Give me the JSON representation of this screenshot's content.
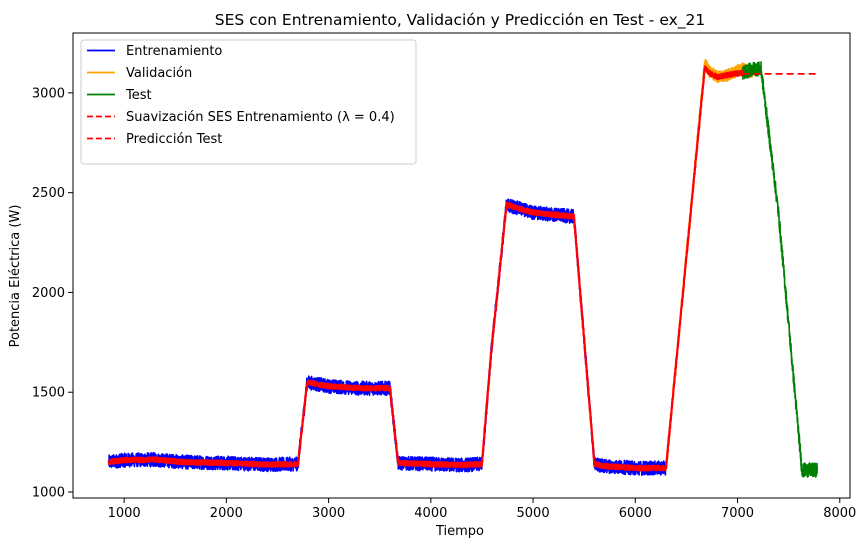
{
  "chart_data": {
    "type": "line",
    "title": "SES con Entrenamiento, Validación y Predicción en Test - ex_21",
    "xlabel": "Tiempo",
    "ylabel": "Potencia Eléctrica (W)",
    "xlim": [
      500,
      8100
    ],
    "ylim": [
      970,
      3300
    ],
    "xticks": [
      1000,
      2000,
      3000,
      4000,
      5000,
      6000,
      7000,
      8000
    ],
    "yticks": [
      1000,
      1500,
      2000,
      2500,
      3000
    ],
    "grid": false,
    "legend_position": "top-left",
    "series": [
      {
        "name": "Entrenamiento",
        "color": "#0000ff",
        "style": "solid",
        "noise": 35,
        "x": [
          850,
          1000,
          1300,
          1600,
          2000,
          2400,
          2700,
          2790,
          3000,
          3300,
          3600,
          3680,
          4000,
          4300,
          4500,
          4590,
          4740,
          5000,
          5300,
          5400,
          5600,
          5700,
          6000,
          6300
        ],
        "y": [
          1150,
          1160,
          1162,
          1150,
          1145,
          1138,
          1140,
          1550,
          1530,
          1520,
          1520,
          1145,
          1140,
          1135,
          1140,
          1700,
          2440,
          2400,
          2385,
          2380,
          1140,
          1130,
          1120,
          1120
        ]
      },
      {
        "name": "Validación",
        "color": "#ffa500",
        "style": "solid",
        "noise": 30,
        "x": [
          6300,
          6680,
          6720,
          6800,
          6900,
          7050,
          7150
        ],
        "y": [
          1120,
          3150,
          3110,
          3080,
          3090,
          3120,
          3100
        ]
      },
      {
        "name": "Test",
        "color": "#008000",
        "style": "solid",
        "noise": 35,
        "x": [
          7050,
          7150,
          7230,
          7400,
          7630,
          7700,
          7780
        ],
        "y": [
          3100,
          3120,
          3120,
          2400,
          1110,
          1110,
          1110
        ]
      },
      {
        "name": "Suavización SES Entrenamiento ($\\lambda = 0.4$)",
        "legend_text": "Suavización SES Entrenamiento (λ = 0.4)",
        "color": "#ff0000",
        "style": "dashed",
        "noise": 12,
        "x": [
          850,
          1000,
          1300,
          1600,
          2000,
          2400,
          2700,
          2790,
          3000,
          3300,
          3600,
          3680,
          4000,
          4300,
          4500,
          4590,
          4740,
          5000,
          5300,
          5400,
          5600,
          5700,
          6000,
          6300,
          6680,
          6720,
          6800,
          6900,
          7050
        ],
        "y": [
          1150,
          1160,
          1162,
          1150,
          1145,
          1138,
          1140,
          1550,
          1530,
          1520,
          1520,
          1145,
          1140,
          1135,
          1140,
          1700,
          2440,
          2400,
          2385,
          2380,
          1140,
          1130,
          1120,
          1120,
          3130,
          3100,
          3080,
          3090,
          3100
        ]
      },
      {
        "name": "Predicción Test",
        "color": "#ff0000",
        "style": "dashed",
        "noise": 0,
        "x": [
          7050,
          7780
        ],
        "y": [
          3095,
          3095
        ]
      }
    ]
  }
}
